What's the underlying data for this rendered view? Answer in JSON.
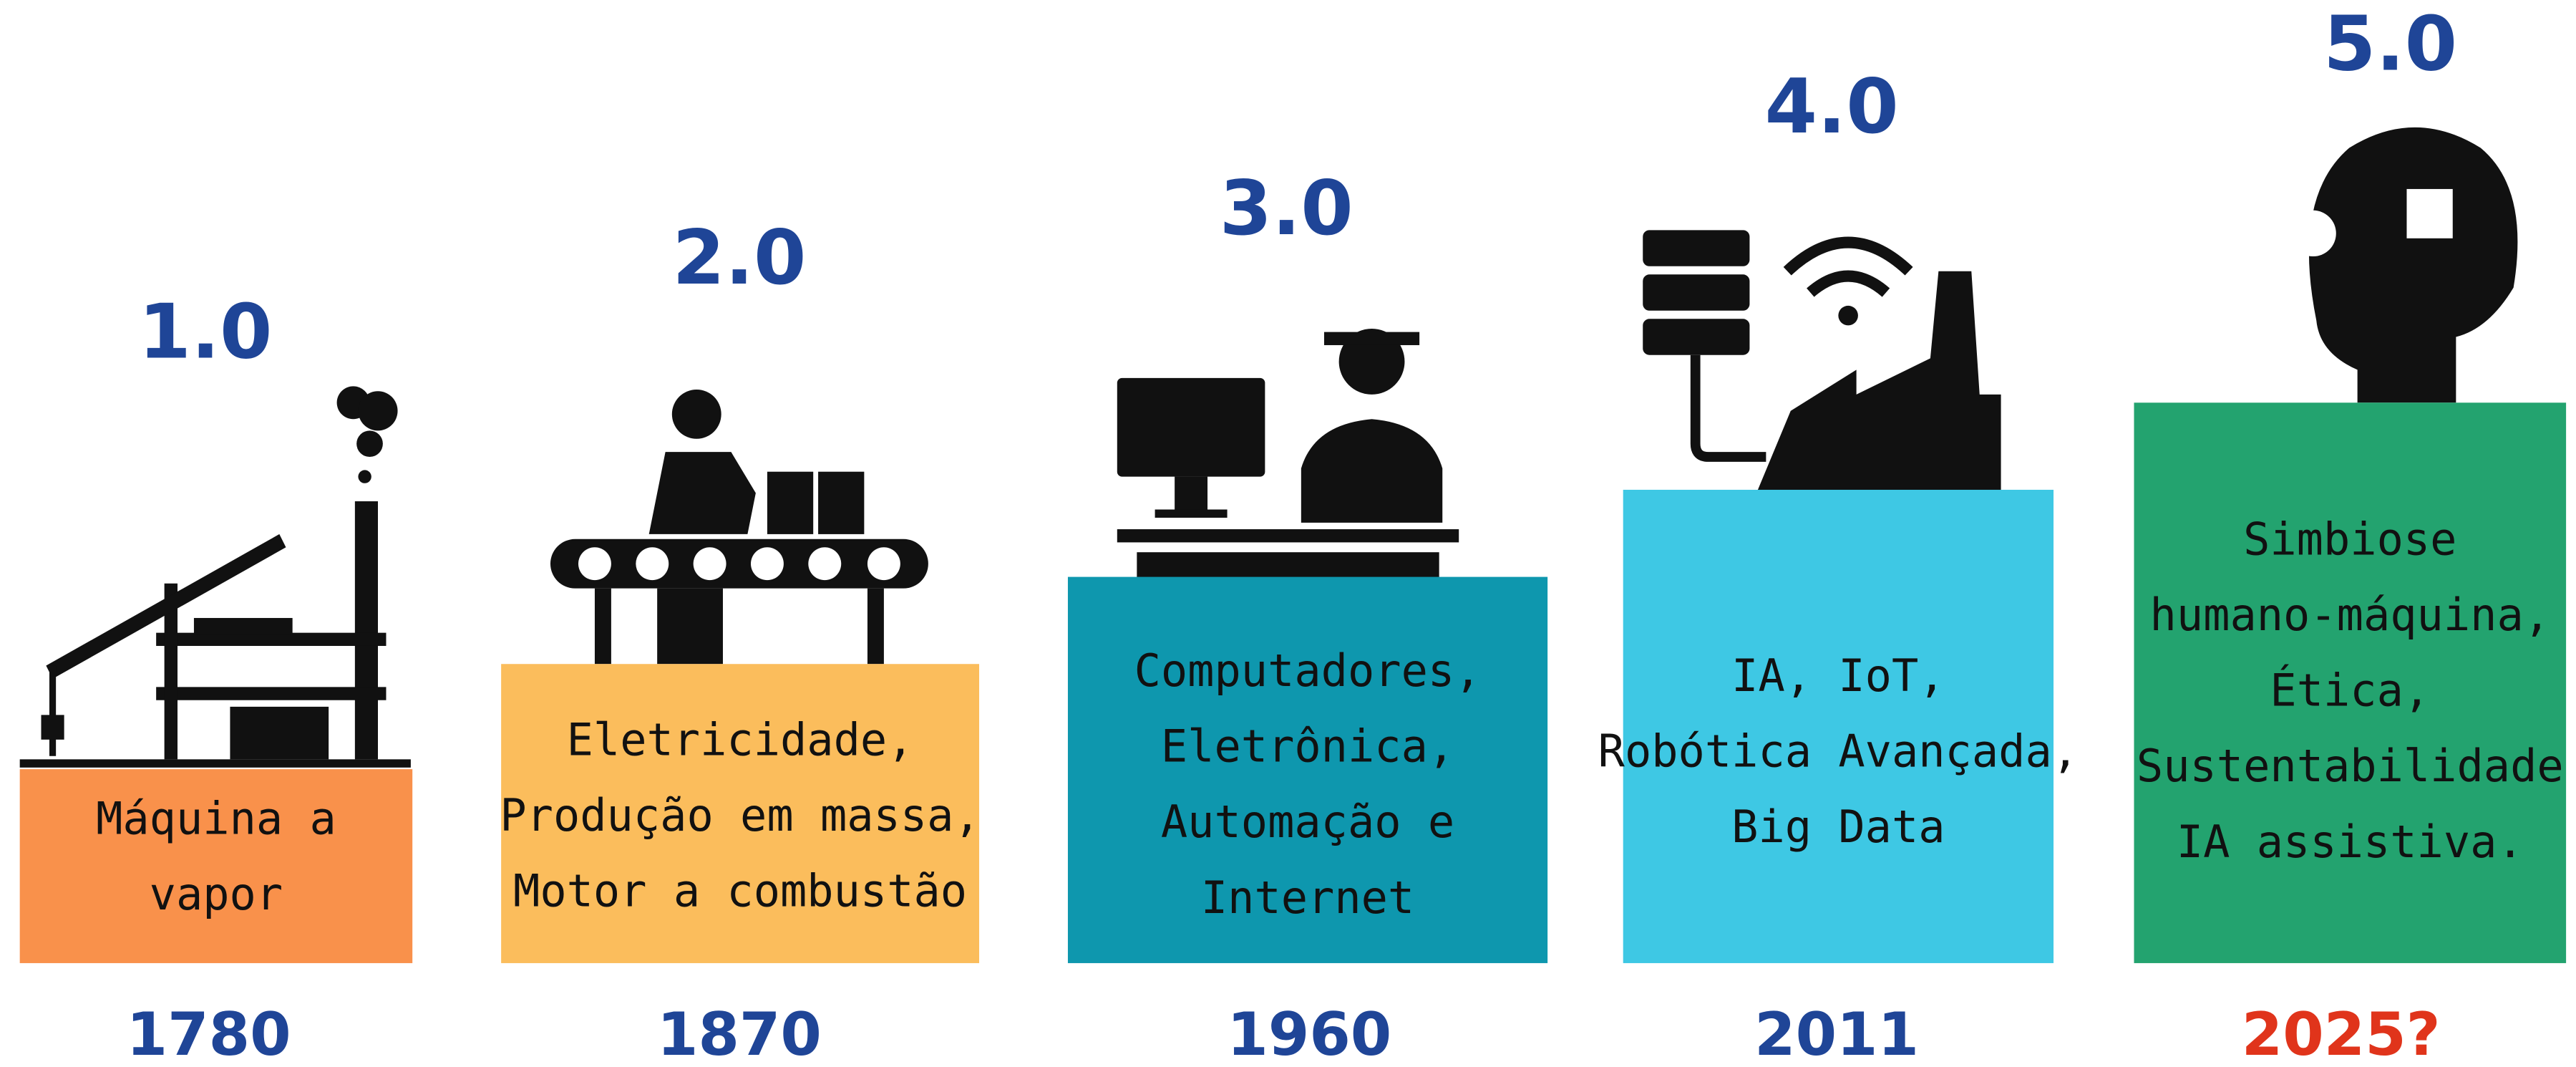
{
  "stages": [
    {
      "version": "1.0",
      "year": "1780",
      "lines": [
        "Máquina a",
        "vapor"
      ]
    },
    {
      "version": "2.0",
      "year": "1870",
      "lines": [
        "Eletricidade,",
        "Produção em massa,",
        "Motor a combustão"
      ]
    },
    {
      "version": "3.0",
      "year": "1960",
      "lines": [
        "Computadores,",
        "Eletrônica,",
        "Automação e",
        "Internet"
      ]
    },
    {
      "version": "4.0",
      "year": "2011",
      "lines": [
        "IA, IoT,",
        "Robótica Avançada,",
        "Big Data"
      ]
    },
    {
      "version": "5.0",
      "year": "2025?",
      "lines": [
        "Simbiose",
        "humano-máquina,",
        "Ética,",
        "Sustentabilidade",
        "IA assistiva."
      ]
    }
  ]
}
